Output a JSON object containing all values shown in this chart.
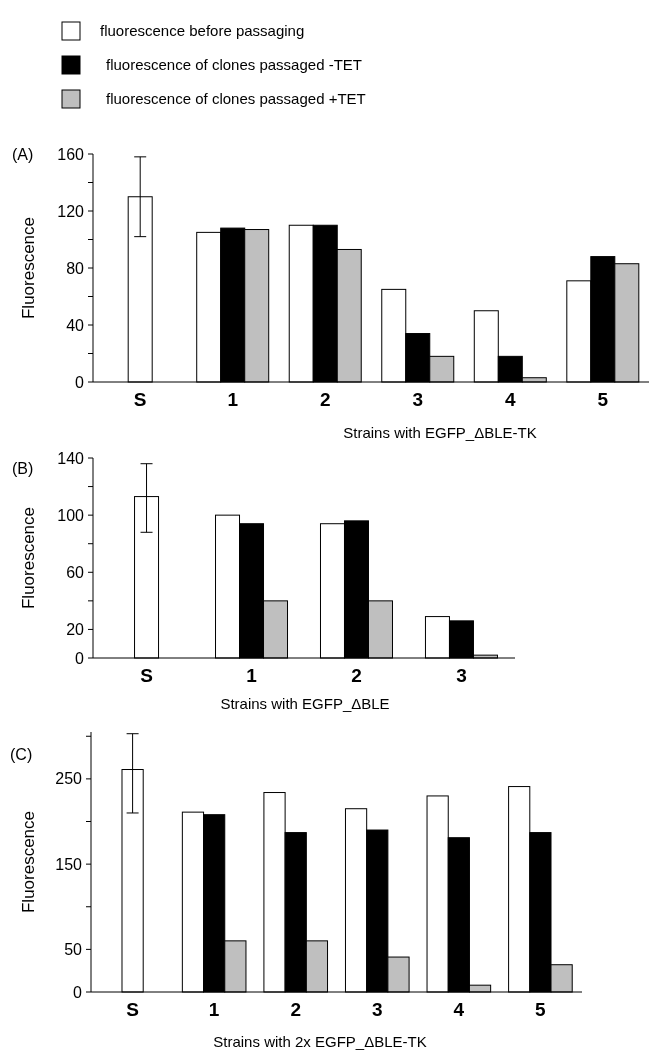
{
  "chart_data": [
    {
      "type": "bar",
      "title": "(A)",
      "xlabel": "Strains with EGFP_ΔBLE-TK",
      "ylabel": "Fluorescence",
      "categories": [
        "S",
        "1",
        "2",
        "3",
        "4",
        "5"
      ],
      "ylim": [
        0,
        160
      ],
      "yticks": [
        0,
        {
          "value": 20,
          "label": null
        },
        40,
        {
          "value": 60,
          "label": null
        },
        80,
        {
          "value": 100,
          "label": null
        },
        120,
        {
          "value": 140,
          "label": null
        },
        160
      ],
      "legend": "top",
      "grid": false,
      "series": [
        {
          "name": "fluorescence before passaging",
          "color": "#ffffff",
          "values": [
            130,
            105,
            110,
            65,
            50,
            71
          ],
          "errors": [
            [
              102,
              158
            ],
            null,
            null,
            null,
            null,
            null
          ]
        },
        {
          "name": "fluorescence of clones passaged -TET",
          "color": "#000000",
          "values": [
            null,
            108,
            110,
            34,
            18,
            88
          ]
        },
        {
          "name": "fluorescence of clones passaged +TET",
          "color": "#bfbfbf",
          "values": [
            null,
            107,
            93,
            18,
            3,
            83
          ]
        }
      ]
    },
    {
      "type": "bar",
      "title": "(B)",
      "xlabel": "Strains with EGFP_ΔBLE",
      "ylabel": "Fluorescence",
      "categories": [
        "S",
        "1",
        "2",
        "3"
      ],
      "ylim": [
        0,
        140
      ],
      "yticks": [
        0,
        20,
        {
          "value": 40,
          "label": null
        },
        60,
        {
          "value": 80,
          "label": null
        },
        100,
        {
          "value": 120,
          "label": null
        },
        140
      ],
      "grid": false,
      "series": [
        {
          "color": "#ffffff",
          "values": [
            113,
            100,
            94,
            29
          ],
          "errors": [
            [
              88,
              136
            ],
            null,
            null,
            null
          ]
        },
        {
          "color": "#000000",
          "values": [
            null,
            94,
            96,
            26
          ]
        },
        {
          "color": "#bfbfbf",
          "values": [
            null,
            40,
            40,
            2
          ]
        }
      ]
    },
    {
      "type": "bar",
      "title": "(C)",
      "xlabel": "Strains with 2x EGFP_ΔBLE-TK",
      "ylabel": "Fluorescence",
      "categories": [
        "S",
        "1",
        "2",
        "3",
        "4",
        "5"
      ],
      "ylim": [
        0,
        305
      ],
      "yticks": [
        0,
        50,
        {
          "value": 100,
          "label": null
        },
        150,
        {
          "value": 200,
          "label": null
        },
        250,
        {
          "value": 300,
          "label": null
        }
      ],
      "grid": false,
      "series": [
        {
          "color": "#ffffff",
          "values": [
            261,
            211,
            234,
            215,
            230,
            241
          ],
          "errors": [
            [
              210,
              303
            ],
            null,
            null,
            null,
            null,
            null
          ]
        },
        {
          "color": "#000000",
          "values": [
            null,
            208,
            187,
            190,
            181,
            187
          ]
        },
        {
          "color": "#bfbfbf",
          "values": [
            null,
            60,
            60,
            41,
            8,
            32
          ]
        }
      ]
    }
  ]
}
